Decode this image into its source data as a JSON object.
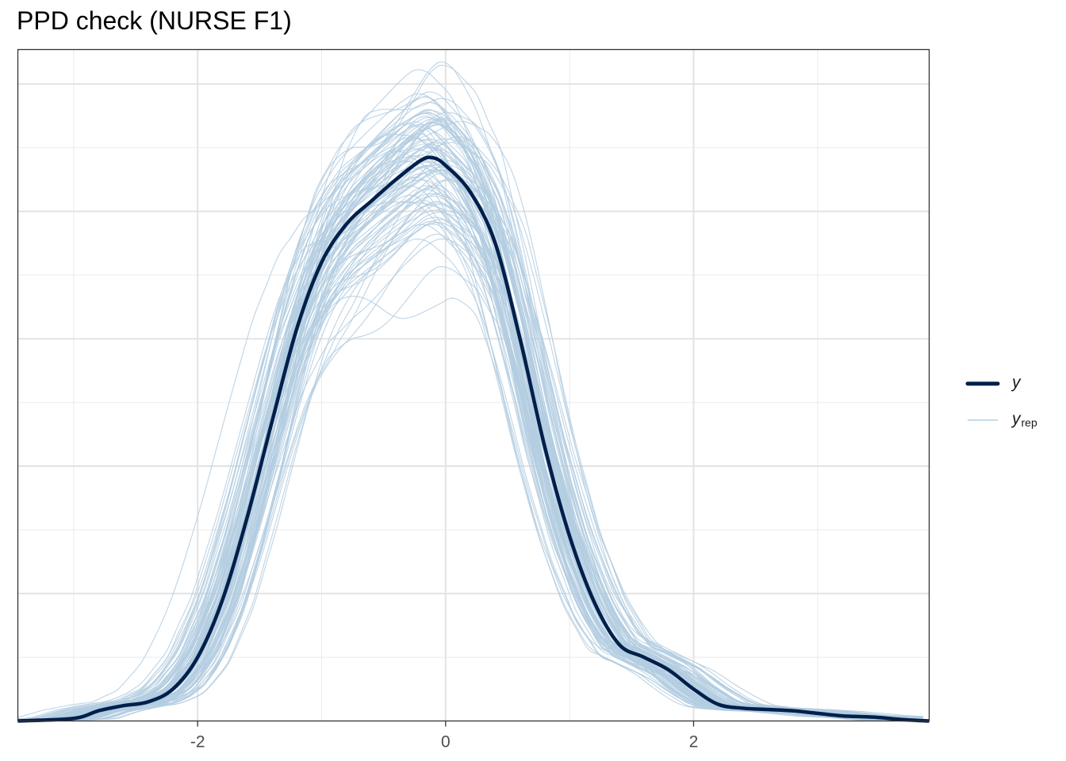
{
  "title": "PPD check (NURSE F1)",
  "chart_data": {
    "type": "line",
    "title": "PPD check (NURSE F1)",
    "xlabel": "",
    "ylabel": "",
    "xlim": [
      -3.45,
      3.9
    ],
    "ylim": [
      0,
      0.527
    ],
    "x_ticks": [
      -2,
      0,
      2
    ],
    "x_tick_labels": [
      "-2",
      "0",
      "2"
    ],
    "y_tick_labels_shown": false,
    "grid": true,
    "legend_position": "right",
    "colors": {
      "y": "#011f4b",
      "y_rep": "#b3cde0"
    },
    "series": [
      {
        "name": "y",
        "x": [
          -3.45,
          -3.0,
          -2.8,
          -2.6,
          -2.4,
          -2.2,
          -2.0,
          -1.8,
          -1.6,
          -1.4,
          -1.2,
          -1.0,
          -0.8,
          -0.6,
          -0.4,
          -0.2,
          -0.1,
          0.0,
          0.2,
          0.4,
          0.6,
          0.8,
          1.0,
          1.2,
          1.4,
          1.6,
          1.8,
          2.0,
          2.2,
          2.4,
          2.6,
          2.8,
          3.0,
          3.2,
          3.45,
          3.7,
          3.9
        ],
        "values": [
          0.0,
          0.002,
          0.008,
          0.012,
          0.015,
          0.025,
          0.05,
          0.095,
          0.16,
          0.235,
          0.308,
          0.36,
          0.39,
          0.408,
          0.425,
          0.44,
          0.442,
          0.436,
          0.415,
          0.375,
          0.3,
          0.215,
          0.145,
          0.093,
          0.06,
          0.05,
          0.04,
          0.025,
          0.013,
          0.01,
          0.009,
          0.008,
          0.006,
          0.004,
          0.003,
          0.001,
          0.0
        ]
      }
    ],
    "y_rep": {
      "name": "y_rep",
      "draws": 100
    }
  },
  "legend": {
    "y": {
      "label": "y"
    },
    "y_rep": {
      "label": "y",
      "subscript": "rep"
    }
  }
}
